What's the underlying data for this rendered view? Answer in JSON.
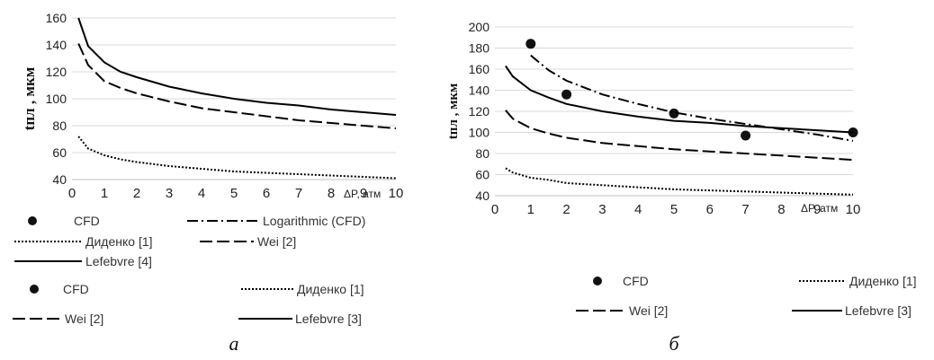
{
  "chart_data": [
    {
      "id": "a",
      "type": "line",
      "panel_label": "a",
      "xlabel": "ΔP, атм",
      "ylabel": "tпл , мкм",
      "xlim": [
        0,
        10
      ],
      "ylim": [
        40,
        160
      ],
      "xticks": [
        0,
        1,
        2,
        3,
        4,
        5,
        6,
        7,
        8,
        9,
        10
      ],
      "yticks": [
        40,
        60,
        80,
        100,
        120,
        140,
        160
      ],
      "grid": "horizontal",
      "series": [
        {
          "name": "Lefebvre [4]",
          "style": "solid",
          "x": [
            0.2,
            0.5,
            1,
            1.5,
            2,
            3,
            4,
            5,
            6,
            7,
            8,
            9,
            10
          ],
          "y": [
            160,
            139,
            127,
            120,
            116,
            109,
            104,
            100,
            97,
            95,
            92,
            90,
            88
          ]
        },
        {
          "name": "Wei [2]",
          "style": "dashed",
          "x": [
            0.2,
            0.5,
            1,
            1.5,
            2,
            3,
            4,
            5,
            6,
            7,
            8,
            9,
            10
          ],
          "y": [
            141,
            125,
            113,
            108,
            104,
            98,
            93,
            90,
            87,
            84,
            82,
            80,
            78
          ]
        },
        {
          "name": "Диденко [1]",
          "style": "dotted",
          "x": [
            0.2,
            0.5,
            1,
            1.5,
            2,
            3,
            4,
            5,
            6,
            7,
            8,
            9,
            10
          ],
          "y": [
            72,
            63,
            58,
            55,
            53,
            50,
            48,
            46,
            45,
            44,
            43,
            42,
            41
          ]
        }
      ],
      "legend_top": [
        {
          "label": "CFD",
          "style": "marker"
        },
        {
          "label": "Logarithmic (CFD)",
          "style": "dashdot"
        },
        {
          "label": "Диденко [1]",
          "style": "dotted"
        },
        {
          "label": "Wei [2]",
          "style": "dashed"
        },
        {
          "label": "Lefebvre [4]",
          "style": "solid"
        }
      ],
      "legend_bottom": [
        {
          "label": "CFD",
          "style": "marker"
        },
        {
          "label": "Диденко [1]",
          "style": "dotted"
        },
        {
          "label": "Wei [2]",
          "style": "dashed"
        },
        {
          "label": "Lefebvre [3]",
          "style": "solid"
        }
      ]
    },
    {
      "id": "b",
      "type": "line",
      "panel_label": "б",
      "xlabel": "ΔP, атм",
      "ylabel": "tпл , мкм",
      "xlim": [
        0,
        10
      ],
      "ylim": [
        40,
        200
      ],
      "xticks": [
        0,
        1,
        2,
        3,
        4,
        5,
        6,
        7,
        8,
        9,
        10
      ],
      "yticks": [
        40,
        60,
        80,
        100,
        120,
        140,
        160,
        180,
        200
      ],
      "grid": "horizontal",
      "series": [
        {
          "name": "CFD",
          "style": "marker",
          "x": [
            1,
            2,
            5,
            7,
            10
          ],
          "y": [
            184,
            136,
            118,
            97,
            100
          ]
        },
        {
          "name": "Logarithmic (CFD)",
          "style": "dashdot",
          "x": [
            1,
            1.5,
            2,
            3,
            4,
            5,
            6,
            7,
            8,
            9,
            10
          ],
          "y": [
            173,
            159,
            149,
            136,
            127,
            119,
            113,
            108,
            103,
            98,
            92
          ]
        },
        {
          "name": "Lefebvre [3]",
          "style": "solid",
          "x": [
            0.3,
            0.5,
            1,
            1.5,
            2,
            3,
            4,
            5,
            6,
            7,
            8,
            9,
            10
          ],
          "y": [
            163,
            153,
            140,
            133,
            127,
            120,
            115,
            111,
            109,
            106,
            104,
            102,
            100
          ]
        },
        {
          "name": "Wei [2]",
          "style": "dashed",
          "x": [
            0.3,
            0.5,
            1,
            1.5,
            2,
            3,
            4,
            5,
            6,
            7,
            8,
            9,
            10
          ],
          "y": [
            121,
            113,
            104,
            99,
            95,
            90,
            87,
            84,
            82,
            80,
            78,
            76,
            74
          ]
        },
        {
          "name": "Диденко [1]",
          "style": "dotted",
          "x": [
            0.3,
            0.5,
            1,
            1.5,
            2,
            3,
            4,
            5,
            6,
            7,
            8,
            9,
            10
          ],
          "y": [
            66,
            62,
            57,
            55,
            52,
            50,
            48,
            46,
            45,
            44,
            43,
            42,
            41
          ]
        }
      ],
      "legend": [
        {
          "label": "CFD",
          "style": "marker"
        },
        {
          "label": "Диденко [1]",
          "style": "dotted"
        },
        {
          "label": "Wei [2]",
          "style": "dashed"
        },
        {
          "label": "Lefebvre [3]",
          "style": "solid"
        }
      ]
    }
  ]
}
